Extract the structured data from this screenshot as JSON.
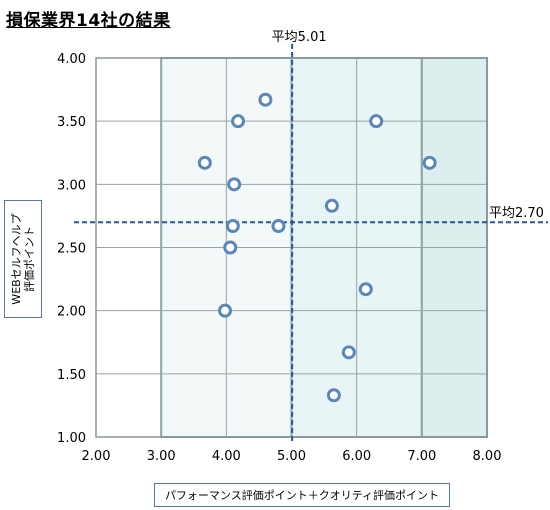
{
  "title": "損保業界14社の結果",
  "chart_data": {
    "type": "scatter",
    "xlabel": "パフォーマンス評価ポイント＋クオリティ評価ポイント",
    "ylabel": "WEBセルフヘルプ\n評価ポイント",
    "xlim": [
      2.0,
      8.0
    ],
    "ylim": [
      1.0,
      4.0
    ],
    "x_ticks": [
      "2.00",
      "3.00",
      "4.00",
      "5.00",
      "6.00",
      "7.00",
      "8.00"
    ],
    "y_ticks": [
      "1.00",
      "1.50",
      "2.00",
      "2.50",
      "3.00",
      "3.50",
      "4.00"
    ],
    "grid": true,
    "shaded_bands": [
      {
        "x_from": 3.0,
        "x_to": 5.0,
        "color": "#f3f9f8"
      },
      {
        "x_from": 5.0,
        "x_to": 7.0,
        "color": "#e9f4f6"
      },
      {
        "x_from": 7.0,
        "x_to": 8.0,
        "color": "#dcefee"
      }
    ],
    "reference_lines": [
      {
        "axis": "x",
        "value": 5.01,
        "label": "平均5.01"
      },
      {
        "axis": "y",
        "value": 2.7,
        "label": "平均2.70"
      }
    ],
    "points": [
      {
        "x": 4.6,
        "y": 3.67
      },
      {
        "x": 4.18,
        "y": 3.5
      },
      {
        "x": 6.3,
        "y": 3.5
      },
      {
        "x": 3.67,
        "y": 3.17
      },
      {
        "x": 7.12,
        "y": 3.17
      },
      {
        "x": 4.12,
        "y": 3.0
      },
      {
        "x": 5.62,
        "y": 2.83
      },
      {
        "x": 4.1,
        "y": 2.67
      },
      {
        "x": 4.8,
        "y": 2.67
      },
      {
        "x": 4.06,
        "y": 2.5
      },
      {
        "x": 6.14,
        "y": 2.17
      },
      {
        "x": 3.98,
        "y": 2.0
      },
      {
        "x": 5.88,
        "y": 1.67
      },
      {
        "x": 5.65,
        "y": 1.33
      }
    ],
    "colors": {
      "marker": "#5b86b8",
      "grid": "#9aa3a3",
      "ref_line": "#1f5a9e",
      "band_border": "#7aa6a8"
    }
  }
}
